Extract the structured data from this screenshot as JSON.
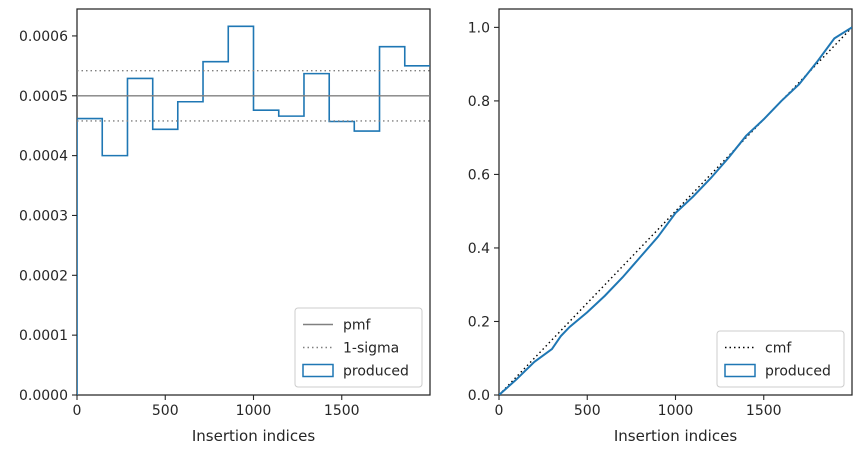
{
  "chart_data": [
    {
      "type": "histogram",
      "xlabel": "Insertion indices",
      "ylabel": "",
      "xlim": [
        0,
        2000
      ],
      "ylim": [
        0,
        0.000645
      ],
      "x_ticks": [
        0,
        500,
        1000,
        1500
      ],
      "x_tick_labels": [
        "0",
        "500",
        "1000",
        "1500"
      ],
      "y_ticks": [
        0,
        0.0001,
        0.0002,
        0.0003,
        0.0004,
        0.0005,
        0.0006
      ],
      "y_tick_labels": [
        "0.0000",
        "0.0001",
        "0.0002",
        "0.0003",
        "0.0004",
        "0.0005",
        "0.0006"
      ],
      "bin_edges": [
        0,
        143,
        286,
        429,
        571,
        714,
        857,
        1000,
        1143,
        1286,
        1429,
        1571,
        1714,
        1857,
        2000
      ],
      "series": [
        {
          "name": "produced",
          "style": "step",
          "color": "#1f77b4",
          "values": [
            0.000462,
            0.0004,
            0.000529,
            0.000444,
            0.00049,
            0.000557,
            0.000616,
            0.000476,
            0.000466,
            0.000537,
            0.000457,
            0.000441,
            0.000582,
            0.00055
          ]
        },
        {
          "name": "pmf",
          "style": "solid",
          "color": "#808080",
          "y": 0.0005
        },
        {
          "name": "1-sigma",
          "style": "dotted",
          "color": "#808080",
          "y": [
            0.000458,
            0.000542
          ]
        }
      ],
      "legend": {
        "position": "lower-right",
        "entries": [
          "pmf",
          "1-sigma",
          "produced"
        ]
      },
      "grid": false
    },
    {
      "type": "line",
      "xlabel": "Insertion indices",
      "ylabel": "",
      "xlim": [
        0,
        2000
      ],
      "ylim": [
        0,
        1.05
      ],
      "x_ticks": [
        0,
        500,
        1000,
        1500
      ],
      "x_tick_labels": [
        "0",
        "500",
        "1000",
        "1500"
      ],
      "y_ticks": [
        0,
        0.2,
        0.4,
        0.6,
        0.8,
        1.0
      ],
      "y_tick_labels": [
        "0.0",
        "0.2",
        "0.4",
        "0.6",
        "0.8",
        "1.0"
      ],
      "series": [
        {
          "name": "cmf",
          "style": "dotted",
          "color": "#000000",
          "x": [
            0,
            2000
          ],
          "y": [
            0,
            1.0
          ]
        },
        {
          "name": "produced",
          "style": "solid",
          "color": "#1f77b4",
          "x": [
            0,
            100,
            200,
            300,
            350,
            400,
            500,
            600,
            700,
            800,
            900,
            1000,
            1100,
            1200,
            1300,
            1400,
            1500,
            1600,
            1700,
            1800,
            1900,
            2000
          ],
          "y": [
            0,
            0.043,
            0.09,
            0.125,
            0.16,
            0.185,
            0.225,
            0.27,
            0.32,
            0.375,
            0.43,
            0.495,
            0.54,
            0.59,
            0.645,
            0.705,
            0.75,
            0.8,
            0.845,
            0.905,
            0.97,
            1.0
          ]
        }
      ],
      "legend": {
        "position": "lower-right",
        "entries": [
          "cmf",
          "produced"
        ]
      },
      "grid": false
    }
  ]
}
